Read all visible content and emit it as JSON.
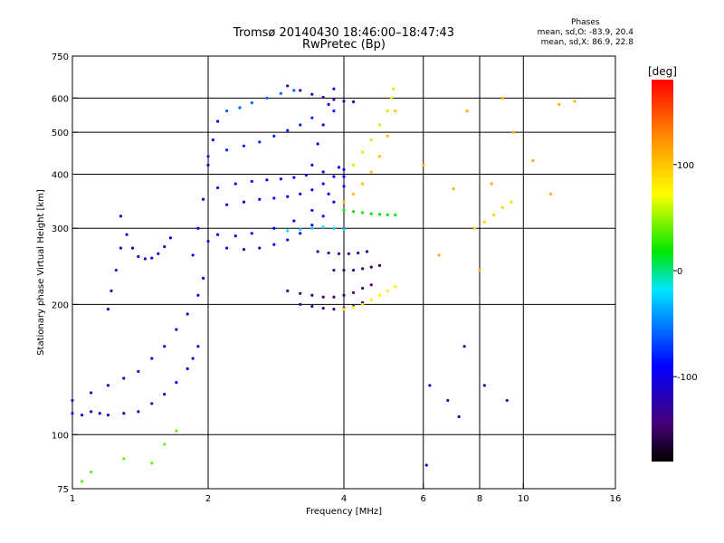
{
  "title_line1": "Tromsø 20140430 18:46:00–18:47:43",
  "title_line2": "RwPretec (Bp)",
  "stats": {
    "header": "Phases",
    "line1": "mean, sd,O: -83.9, 20.4",
    "line2": "mean, sd,X: 86.9, 22.8"
  },
  "colors": {
    "axis": "#000000",
    "background": "#ffffff"
  },
  "chart_data": {
    "type": "scatter",
    "xlabel": "Frequency [MHz]",
    "ylabel": "Stationary phase Virtual Height [km]",
    "x_scale": "log",
    "y_scale": "log",
    "xlim": [
      1,
      16
    ],
    "ylim": [
      75,
      750
    ],
    "xticks": [
      1,
      2,
      4,
      6,
      8,
      10,
      16
    ],
    "yticks": [
      75,
      100,
      200,
      300,
      400,
      500,
      600,
      750
    ],
    "grid_x": [
      2,
      4,
      6,
      8,
      10
    ],
    "grid_y": [
      100,
      200,
      300,
      400,
      500,
      600
    ],
    "colorbar": {
      "label": "[deg]",
      "range": [
        -180,
        180
      ],
      "ticks": [
        100,
        0,
        -100
      ]
    },
    "series": [
      {
        "x": [
          1.0,
          1.05,
          1.1,
          1.15,
          1.2,
          1.3,
          1.4,
          1.5,
          1.6,
          1.7,
          1.8,
          1.85,
          1.9
        ],
        "y": [
          112,
          111,
          113,
          112,
          111,
          112,
          113,
          118,
          124,
          132,
          142,
          150,
          160
        ],
        "phase": -110
      },
      {
        "x": [
          1.0,
          1.1,
          1.2,
          1.3,
          1.4,
          1.5,
          1.6,
          1.7,
          1.8,
          1.9,
          1.95
        ],
        "y": [
          120,
          125,
          130,
          135,
          140,
          150,
          160,
          175,
          190,
          210,
          230
        ],
        "phase": -105
      },
      {
        "x": [
          1.28,
          1.32,
          1.36,
          1.4,
          1.45,
          1.5,
          1.55,
          1.6,
          1.65
        ],
        "y": [
          320,
          290,
          270,
          258,
          255,
          256,
          262,
          272,
          285
        ],
        "phase": -110
      },
      {
        "x": [
          1.2,
          1.22,
          1.25,
          1.28
        ],
        "y": [
          195,
          215,
          240,
          270
        ],
        "phase": -115
      },
      {
        "x": [
          1.85,
          1.9,
          1.95,
          2.0,
          2.05,
          2.1
        ],
        "y": [
          260,
          300,
          350,
          420,
          480,
          530
        ],
        "phase": -95
      },
      {
        "x": [
          2.0,
          2.2,
          2.4,
          2.6,
          2.8,
          3.0,
          3.2,
          3.4,
          3.6,
          3.8,
          4.0
        ],
        "y": [
          280,
          270,
          268,
          270,
          275,
          282,
          292,
          305,
          320,
          345,
          375
        ],
        "phase": -100
      },
      {
        "x": [
          2.1,
          2.3,
          2.5,
          2.8,
          3.1,
          3.4,
          3.7,
          4.0
        ],
        "y": [
          290,
          288,
          292,
          300,
          312,
          330,
          360,
          395
        ],
        "phase": -90
      },
      {
        "x": [
          2.2,
          2.4,
          2.6,
          2.8,
          3.0,
          3.2,
          3.4,
          3.6,
          3.8,
          4.0
        ],
        "y": [
          340,
          345,
          350,
          352,
          355,
          360,
          368,
          380,
          395,
          410
        ],
        "phase": -95
      },
      {
        "x": [
          2.1,
          2.3,
          2.5,
          2.7,
          2.9,
          3.1,
          3.3,
          3.6,
          3.9
        ],
        "y": [
          372,
          380,
          385,
          388,
          390,
          393,
          398,
          405,
          415
        ],
        "phase": -92
      },
      {
        "x": [
          2.0,
          2.2,
          2.4,
          2.6,
          2.8,
          3.0,
          3.2,
          3.4,
          3.8
        ],
        "y": [
          440,
          455,
          465,
          475,
          490,
          505,
          520,
          540,
          560
        ],
        "phase": -80
      },
      {
        "x": [
          2.2,
          2.35,
          2.5,
          2.7,
          2.9,
          3.1
        ],
        "y": [
          560,
          570,
          585,
          600,
          615,
          625
        ],
        "phase": -60
      },
      {
        "x": [
          3.0,
          3.2,
          3.4,
          3.6,
          3.8,
          4.0,
          4.2
        ],
        "y": [
          640,
          625,
          612,
          602,
          595,
          590,
          588
        ],
        "phase": -130
      },
      {
        "x": [
          3.4,
          3.5,
          3.6,
          3.7,
          3.8
        ],
        "y": [
          420,
          470,
          520,
          580,
          630
        ],
        "phase": -105
      },
      {
        "x": [
          3.0,
          3.2,
          3.4,
          3.6,
          3.8,
          4.0
        ],
        "y": [
          296,
          298,
          300,
          302,
          300,
          298
        ],
        "phase": -20
      },
      {
        "x": [
          4.0,
          4.2,
          4.4,
          4.6,
          4.8,
          5.0,
          5.2
        ],
        "y": [
          345,
          360,
          380,
          405,
          440,
          490,
          560
        ],
        "phase": 100
      },
      {
        "x": [
          4.2,
          4.4,
          4.6,
          4.8,
          5.0,
          5.1,
          5.15
        ],
        "y": [
          420,
          450,
          480,
          520,
          560,
          600,
          630
        ],
        "phase": 60
      },
      {
        "x": [
          4.0,
          4.2,
          4.4,
          4.6,
          4.8,
          5.0,
          5.2
        ],
        "y": [
          330,
          328,
          326,
          324,
          323,
          322,
          322
        ],
        "phase": 20
      },
      {
        "x": [
          3.2,
          3.4,
          3.6,
          3.8,
          4.0,
          4.2,
          4.4
        ],
        "y": [
          200,
          198,
          196,
          195,
          196,
          198,
          202
        ],
        "phase": -140
      },
      {
        "x": [
          3.0,
          3.2,
          3.4,
          3.6,
          3.8,
          4.0,
          4.2,
          4.4,
          4.6
        ],
        "y": [
          215,
          212,
          210,
          208,
          208,
          210,
          213,
          218,
          222
        ],
        "phase": -145
      },
      {
        "x": [
          4.0,
          4.2,
          4.4,
          4.6,
          4.8,
          5.0,
          5.2
        ],
        "y": [
          195,
          197,
          200,
          205,
          210,
          215,
          220
        ],
        "phase": 80
      },
      {
        "x": [
          3.8,
          4.0,
          4.2,
          4.4,
          4.6,
          4.8
        ],
        "y": [
          240,
          240,
          240,
          242,
          244,
          246
        ],
        "phase": -150
      },
      {
        "x": [
          3.5,
          3.7,
          3.9,
          4.1,
          4.3,
          4.5
        ],
        "y": [
          265,
          263,
          262,
          262,
          263,
          265
        ],
        "phase": -135
      },
      {
        "x": [
          7.8,
          8.2,
          8.6,
          9.0,
          9.4
        ],
        "y": [
          300,
          310,
          322,
          335,
          345
        ],
        "phase": 90
      },
      {
        "x": [
          6.0,
          6.5,
          7.0,
          7.5,
          8.0,
          8.5,
          9.0,
          9.5,
          10.5,
          11.5,
          12.0,
          13.0
        ],
        "y": [
          420,
          260,
          370,
          560,
          240,
          380,
          600,
          500,
          430,
          360,
          580,
          590
        ],
        "phase": 110
      },
      {
        "x": [
          6.2,
          6.8,
          7.2,
          8.2,
          9.2,
          6.1,
          7.4
        ],
        "y": [
          130,
          120,
          110,
          130,
          120,
          85,
          160
        ],
        "phase": -120
      },
      {
        "x": [
          1.05,
          1.1,
          1.3,
          1.5,
          1.6,
          1.7
        ],
        "y": [
          78,
          82,
          88,
          86,
          95,
          102
        ],
        "phase": 40
      }
    ]
  }
}
